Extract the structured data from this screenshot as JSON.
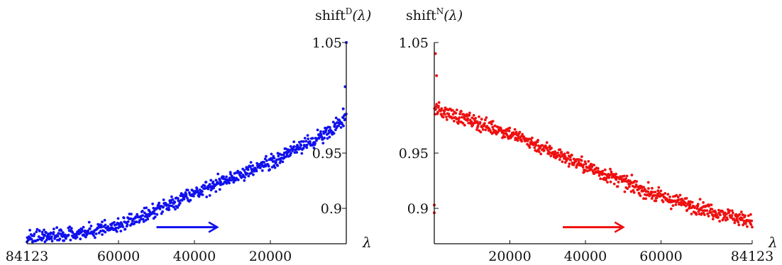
{
  "chart_data": [
    {
      "type": "scatter",
      "ylabel": "shift",
      "ylabel_sup": "D",
      "ylabel_arg": "(λ)",
      "xlabel": "λ",
      "xlim": [
        84123,
        0
      ],
      "ylim": [
        0.868,
        1.05
      ],
      "x_ticks": [
        84123,
        60000,
        40000,
        20000
      ],
      "x_tick_labels": [
        "84123",
        "60000",
        "40000",
        "20000"
      ],
      "y_ticks": [
        0.9,
        0.95,
        1.05
      ],
      "y_tick_labels": [
        "0.9",
        "0.95",
        "1.05"
      ],
      "y_axis_side": "right",
      "color": "#1010ee",
      "trend": [
        [
          84123,
          0.872
        ],
        [
          60000,
          0.883
        ],
        [
          40000,
          0.914
        ],
        [
          20000,
          0.942
        ],
        [
          5000,
          0.968
        ],
        [
          0,
          0.982
        ]
      ],
      "arrow": {
        "from": 50000,
        "to": 34000,
        "y": 0.883
      },
      "grid": false
    },
    {
      "type": "scatter",
      "ylabel": "shift",
      "ylabel_sup": "N",
      "ylabel_arg": "(λ)",
      "xlabel": "λ",
      "xlim": [
        0,
        84123
      ],
      "ylim": [
        0.868,
        1.05
      ],
      "x_ticks": [
        20000,
        40000,
        60000,
        84123
      ],
      "x_tick_labels": [
        "20000",
        "40000",
        "60000",
        "84123"
      ],
      "y_ticks": [
        0.9,
        0.95,
        1.05
      ],
      "y_tick_labels": [
        "0.9",
        "0.95",
        "1.05"
      ],
      "y_axis_side": "left",
      "color": "#ee1010",
      "trend": [
        [
          0,
          0.99
        ],
        [
          20000,
          0.968
        ],
        [
          40000,
          0.938
        ],
        [
          60000,
          0.91
        ],
        [
          84123,
          0.888
        ]
      ],
      "arrow": {
        "from": 34000,
        "to": 50000,
        "y": 0.883
      },
      "grid": false
    }
  ]
}
